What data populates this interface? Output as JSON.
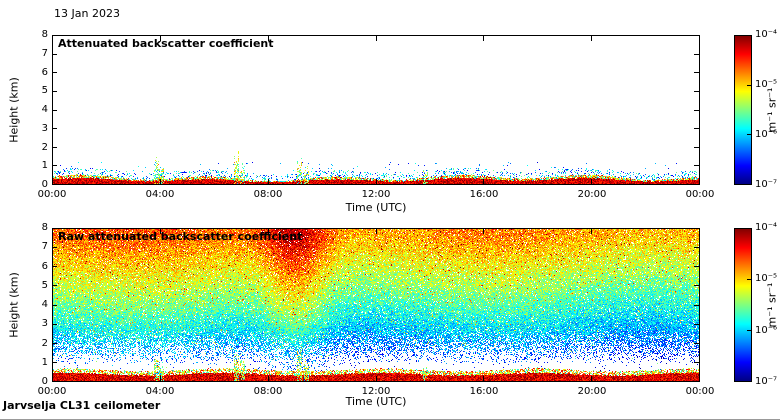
{
  "header": {
    "date": "13 Jan 2023"
  },
  "footer": {
    "instrument": "Jarvselja CL31 ceilometer"
  },
  "colors": {
    "background": "#ffffff",
    "axis": "#000000",
    "jet_stops": [
      "#00007f",
      "#0000ff",
      "#00ffff",
      "#ffff00",
      "#ff0000",
      "#7f0000"
    ]
  },
  "chart_data": [
    {
      "type": "heatmap",
      "style": "processed",
      "title": "Attenuated backscatter coefficient",
      "xlabel": "Time (UTC)",
      "ylabel": "Height (km)",
      "x_ticks": [
        "00:00",
        "04:00",
        "08:00",
        "12:00",
        "16:00",
        "20:00",
        "00:00"
      ],
      "x_range_hours": [
        0,
        24
      ],
      "y_ticks": [
        "0",
        "1",
        "2",
        "3",
        "4",
        "5",
        "6",
        "7",
        "8"
      ],
      "ylim_km": [
        0,
        8
      ],
      "grid": false,
      "colorbar": {
        "scale": "log",
        "range": [
          1e-07,
          0.0001
        ],
        "tick_labels": [
          "10⁻⁴",
          "10⁻⁵",
          "10⁻⁶",
          "10⁻⁷"
        ],
        "unit": "m⁻¹ sr⁻¹",
        "colormap": "jet",
        "position": "right"
      },
      "features": {
        "surface_layer_km": 0.45,
        "spikes": [
          {
            "hour": 3.85,
            "top_km": 1.7
          },
          {
            "hour": 4.05,
            "top_km": 1.1
          },
          {
            "hour": 6.8,
            "top_km": 2.0
          },
          {
            "hour": 7.05,
            "top_km": 1.3
          },
          {
            "hour": 9.15,
            "top_km": 1.6
          },
          {
            "hour": 9.4,
            "top_km": 1.1
          },
          {
            "hour": 13.8,
            "top_km": 0.8
          }
        ]
      }
    },
    {
      "type": "heatmap",
      "style": "raw",
      "title": "Raw attenuated backscatter coefficient",
      "xlabel": "Time (UTC)",
      "ylabel": "Height (km)",
      "x_ticks": [
        "00:00",
        "04:00",
        "08:00",
        "12:00",
        "16:00",
        "20:00",
        "00:00"
      ],
      "x_range_hours": [
        0,
        24
      ],
      "y_ticks": [
        "0",
        "1",
        "2",
        "3",
        "4",
        "5",
        "6",
        "7",
        "8"
      ],
      "ylim_km": [
        0,
        8
      ],
      "grid": false,
      "colorbar": {
        "scale": "log",
        "range": [
          1e-07,
          0.0001
        ],
        "tick_labels": [
          "10⁻⁴",
          "10⁻⁵",
          "10⁻⁶",
          "10⁻⁷"
        ],
        "unit": "m⁻¹ sr⁻¹",
        "colormap": "jet",
        "position": "right"
      },
      "features": {
        "surface_layer_km": 0.42,
        "noise_floor_gap_km": [
          0.7,
          2.0
        ],
        "plume_hour": 9.0,
        "spikes": [
          {
            "hour": 3.85,
            "top_km": 1.3
          },
          {
            "hour": 4.05,
            "top_km": 1.0
          },
          {
            "hour": 6.8,
            "top_km": 1.6
          },
          {
            "hour": 7.05,
            "top_km": 1.2
          },
          {
            "hour": 9.15,
            "top_km": 2.0
          },
          {
            "hour": 9.4,
            "top_km": 1.2
          },
          {
            "hour": 13.8,
            "top_km": 0.8
          }
        ]
      }
    }
  ]
}
